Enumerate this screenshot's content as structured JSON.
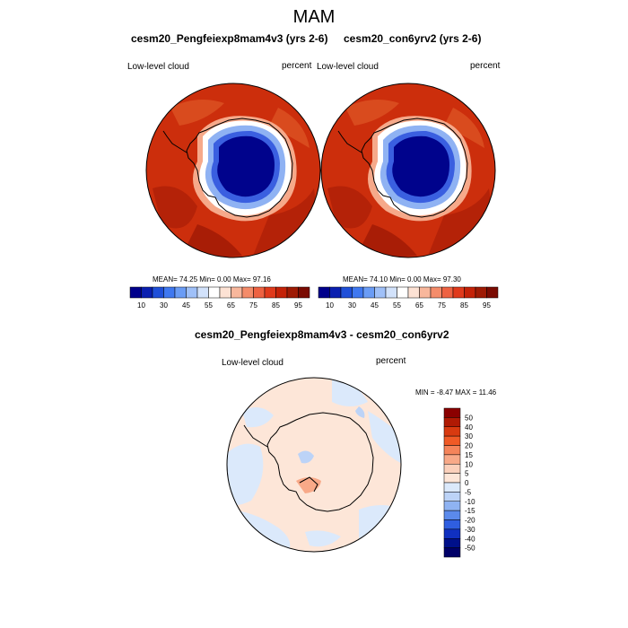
{
  "main_title": "MAM",
  "panels": [
    {
      "title": "cesm20_Pengfeiexp8mam4v3 (yrs 2-6)",
      "variable": "Low-level cloud",
      "units": "percent",
      "stats": "MEAN=  74.25  Min=   0.00  Max=  97.16"
    },
    {
      "title": "cesm20_con6yrv2 (yrs 2-6)",
      "variable": "Low-level cloud",
      "units": "percent",
      "stats": "MEAN=  74.10  Min=   0.00  Max=  97.30"
    }
  ],
  "diff_panel": {
    "title": "cesm20_Pengfeiexp8mam4v3 - cesm20_con6yrv2",
    "variable": "Low-level cloud",
    "units": "percent",
    "stats": "MIN =  -8.47 MAX =  11.46"
  },
  "colorbar_main": {
    "labels": [
      "10",
      "30",
      "45",
      "55",
      "65",
      "75",
      "85",
      "95"
    ],
    "colors": [
      "#00008b",
      "#0a1fb0",
      "#1f4fd8",
      "#3f78f0",
      "#6a9cf5",
      "#9fc0f8",
      "#d2e2fb",
      "#ffffff",
      "#fde2d4",
      "#f8b79c",
      "#f48c6a",
      "#ee6242",
      "#e03a1c",
      "#c42208",
      "#9e1a04",
      "#7a0b02"
    ]
  },
  "colorbar_diff": {
    "labels": [
      "50",
      "40",
      "30",
      "20",
      "15",
      "10",
      "5",
      "0",
      "-5",
      "-10",
      "-15",
      "-20",
      "-30",
      "-40",
      "-50"
    ],
    "colors": [
      "#8b0000",
      "#b01a04",
      "#d83a10",
      "#f05a26",
      "#f5845a",
      "#f8a988",
      "#fbd0bb",
      "#fde6d8",
      "#dbe9fb",
      "#bcd3f7",
      "#8fb3f2",
      "#5b8aeb",
      "#2f5ee0",
      "#1030c0",
      "#00108a",
      "#000068"
    ]
  },
  "colors": {
    "ocean_red": "#cc2e0c",
    "antarctica": "#00038c",
    "diff_pos": "#fde6d8",
    "diff_neg": "#dbe9fb"
  }
}
